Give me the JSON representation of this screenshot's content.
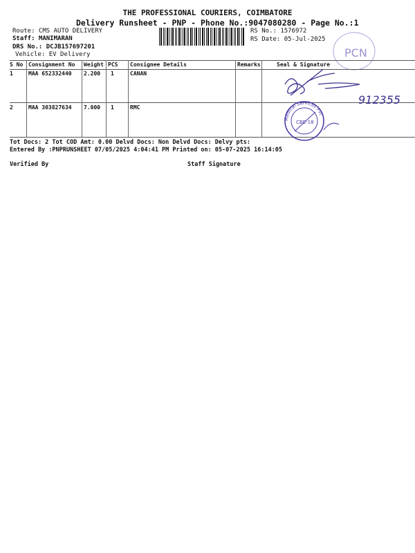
{
  "header": {
    "company": "THE PROFESSIONAL COURIERS, COIMBATORE",
    "subtitle": "Delivery Runsheet - PNP - Phone No.:9047080280 - Page No.:1"
  },
  "info": {
    "route": "Route: CMS AUTO DELIVERY",
    "staff": "Staff: MANIMARAN",
    "drs": "DRS No.: DCJB157697201",
    "vehicle": "Vehicle: EV Delivery",
    "rs_no": "RS No.: 1576972",
    "rs_date": "RS Date: 05-Jul-2025"
  },
  "table": {
    "columns": [
      "S No",
      "Consignment No",
      "Weight",
      "PCS",
      "Consignee Details",
      "Remarks",
      "Seal & Signature"
    ],
    "rows": [
      {
        "sno": "1",
        "consignment": "MAA 652332440",
        "weight": "2.200",
        "pcs": "1",
        "consignee": "CANAN",
        "remarks": ""
      },
      {
        "sno": "2",
        "consignment": "MAA 303827634",
        "weight": "7.000",
        "pcs": "1",
        "consignee": "RMC",
        "remarks": ""
      }
    ]
  },
  "footer": {
    "totals": "Tot Docs:   2    Tot COD Amt:     0.00     Delvd Docs:     Non Delvd Docs:     Delvy pts:",
    "entered": "Entered By :PNPRUNSHEET 07/05/2025 4:04:41 PM     Printed on: 05-07-2025 16:14:05",
    "verified_by": "Verified By",
    "staff_signature": "Staff Signature"
  },
  "marks": {
    "stamp_text": "RMC Medical Services Private",
    "stamp_center": "CBE-18",
    "top_stamp": "PCN",
    "handwritten_number": "912355",
    "ink_color": "#4a3aa8"
  }
}
